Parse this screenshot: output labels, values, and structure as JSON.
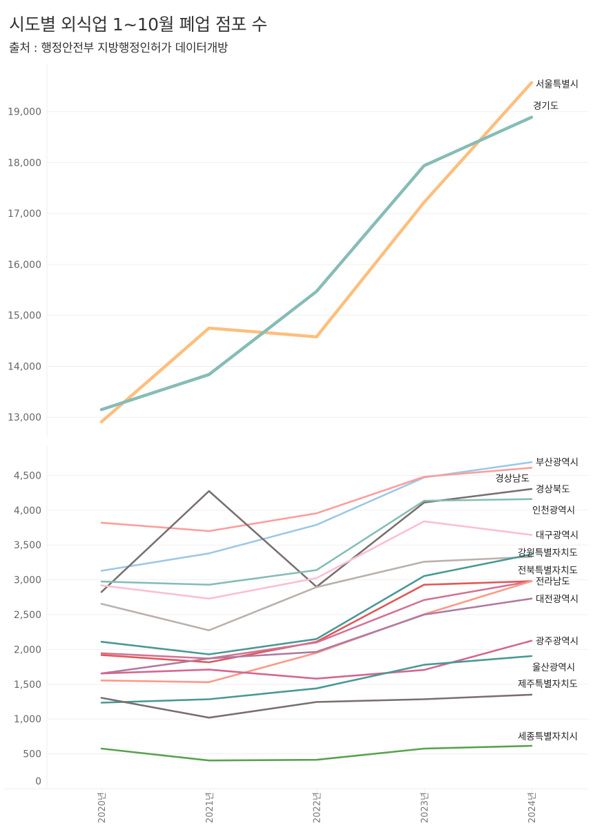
{
  "header": {
    "title": "시도별 외식업 1~10월  폐업 점포 수",
    "subtitle": "출처 : 행정안전부 지방행정인허가 데이터개방"
  },
  "chart_data": [
    {
      "type": "line",
      "categories": [
        "2020년",
        "2021년",
        "2022년",
        "2023년",
        "2024년"
      ],
      "xlabel": "",
      "ylabel": "",
      "ylim": [
        12700,
        19900
      ],
      "yticks": [
        13000,
        14000,
        15000,
        16000,
        17000,
        18000,
        19000
      ],
      "ytick_labels": [
        "13,000",
        "14,000",
        "15,000",
        "16,000",
        "17,000",
        "18,000",
        "19,000"
      ],
      "grid": true,
      "series": [
        {
          "name": "서울특별시",
          "color": "#ffbe7d",
          "values": [
            12910,
            14750,
            14580,
            17220,
            19570
          ]
        },
        {
          "name": "경기도",
          "color": "#86bcb6",
          "values": [
            13150,
            13840,
            15470,
            17940,
            18890
          ]
        }
      ]
    },
    {
      "type": "line",
      "categories": [
        "2020년",
        "2021년",
        "2022년",
        "2023년",
        "2024년"
      ],
      "xlabel": "",
      "ylabel": "",
      "ylim": [
        0,
        4930
      ],
      "yticks": [
        0,
        500,
        1000,
        1500,
        2000,
        2500,
        3000,
        3500,
        4000,
        4500
      ],
      "ytick_labels": [
        "0",
        "500",
        "1,000",
        "1,500",
        "2,000",
        "2,500",
        "3,000",
        "3,500",
        "4,000",
        "4,500"
      ],
      "grid": true,
      "series": [
        {
          "name": "부산광역시",
          "color": "#9dc7e6",
          "values": [
            3130,
            3380,
            3790,
            4470,
            4690
          ]
        },
        {
          "name": "경상남도",
          "color": "#ff9d9a",
          "values": [
            3820,
            3700,
            3955,
            4480,
            4610
          ]
        },
        {
          "name": "경상북도",
          "color": "#79706e",
          "values": [
            2825,
            4275,
            2900,
            4110,
            4305
          ]
        },
        {
          "name": "인천광역시",
          "color": "#86bcb6",
          "values": [
            2975,
            2930,
            3140,
            4135,
            4160
          ]
        },
        {
          "name": "대구광역시",
          "color": "#fabfd2",
          "values": [
            2920,
            2730,
            3025,
            3840,
            3645
          ]
        },
        {
          "name": "",
          "color": "#bab0ac",
          "values": [
            2655,
            2275,
            2895,
            3260,
            3330
          ]
        },
        {
          "name": "강원특별자치도",
          "color": "#499894",
          "values": [
            2110,
            1930,
            2150,
            3055,
            3365
          ]
        },
        {
          "name": "전북특별자치도",
          "color": "#e15759",
          "values": [
            1920,
            1815,
            2110,
            2930,
            2980
          ]
        },
        {
          "name": "전라남도",
          "color": "#d37295",
          "values": [
            1945,
            1870,
            2100,
            2710,
            2980
          ]
        },
        {
          "name": "",
          "color": "#ff9888",
          "values": [
            1555,
            1530,
            1950,
            2505,
            2980
          ]
        },
        {
          "name": "대전광역시",
          "color": "#b07aa1",
          "values": [
            1655,
            1870,
            1965,
            2500,
            2730
          ]
        },
        {
          "name": "광주광역시",
          "color": "#d4668f",
          "values": [
            1655,
            1710,
            1580,
            1705,
            2125
          ]
        },
        {
          "name": "울산광역시",
          "color": "#499894",
          "values": [
            1235,
            1285,
            1440,
            1780,
            1905
          ]
        },
        {
          "name": "제주특별자치도",
          "color": "#79706e",
          "values": [
            1305,
            1020,
            1245,
            1285,
            1350
          ]
        },
        {
          "name": "세종특별자치시",
          "color": "#59a14f",
          "values": [
            575,
            405,
            415,
            575,
            615
          ]
        }
      ]
    }
  ]
}
